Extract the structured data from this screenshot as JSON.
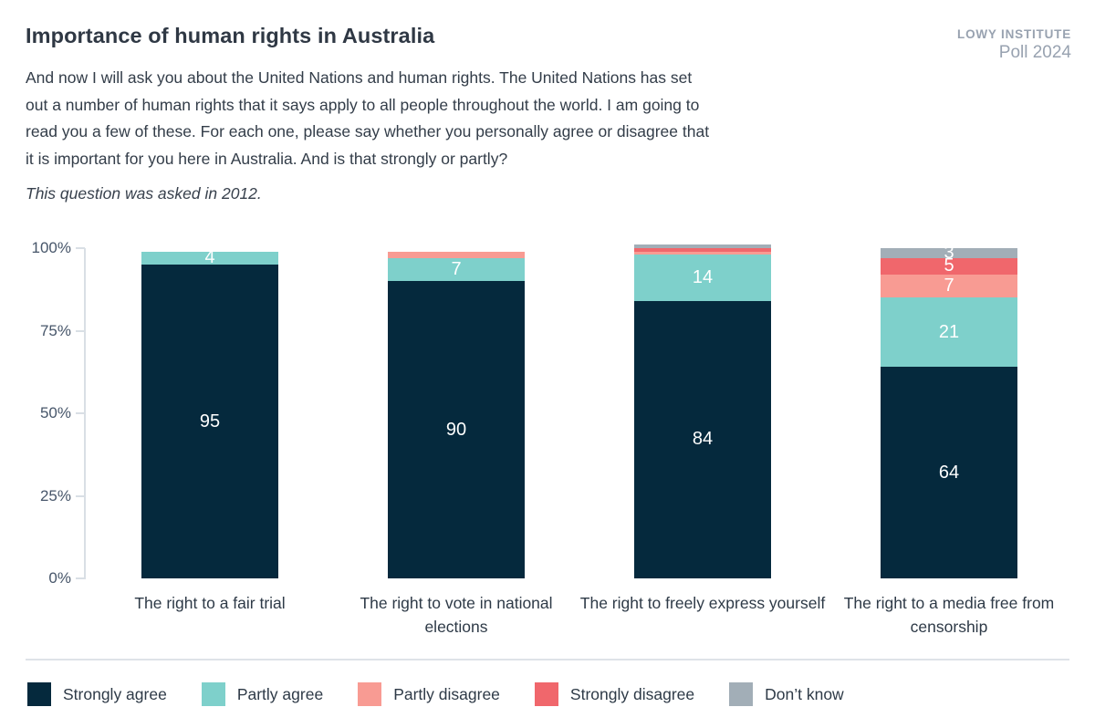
{
  "header": {
    "title": "Importance of human rights in Australia",
    "logo_line1": "LOWY INSTITUTE",
    "logo_line2": "Poll 2024",
    "question_lines": [
      "And now I will ask you about the United Nations and human rights. The United Nations has set",
      "out a number of human rights that it says apply to all people throughout the world. I am going to",
      "read you a few of these. For each one, please say whether you personally agree or disagree that",
      "it is important for you here in Australia. And is that strongly or partly?"
    ],
    "note": "This question was asked in 2012."
  },
  "chart_data": {
    "type": "bar",
    "stacked": true,
    "title": "Importance of human rights in Australia",
    "categories": [
      "The right to a fair trial",
      "The right to vote in national elections",
      "The right to freely express yourself",
      "The right to a media free from censorship"
    ],
    "series": [
      {
        "name": "Strongly agree",
        "color": "#05293D",
        "values": [
          95,
          90,
          84,
          64
        ]
      },
      {
        "name": "Partly agree",
        "color": "#7ED0CB",
        "values": [
          4,
          7,
          14,
          21
        ]
      },
      {
        "name": "Partly disagree",
        "color": "#F89B93",
        "values": [
          0,
          2,
          1,
          7
        ]
      },
      {
        "name": "Strongly disagree",
        "color": "#F0676C",
        "values": [
          0,
          0,
          1,
          5
        ]
      },
      {
        "name": "Don’t know",
        "color": "#A2AEB7",
        "values": [
          0,
          0,
          1,
          3
        ]
      }
    ],
    "xlabel": "",
    "ylabel": "",
    "ylim": [
      0,
      100
    ],
    "yticks": [
      "0%",
      "25%",
      "50%",
      "75%",
      "100%"
    ],
    "grid": false,
    "label_min_value": 3,
    "value_label_color": "#ffffff",
    "legend_position": "bottom",
    "axis_color": "#D9DFE5"
  }
}
